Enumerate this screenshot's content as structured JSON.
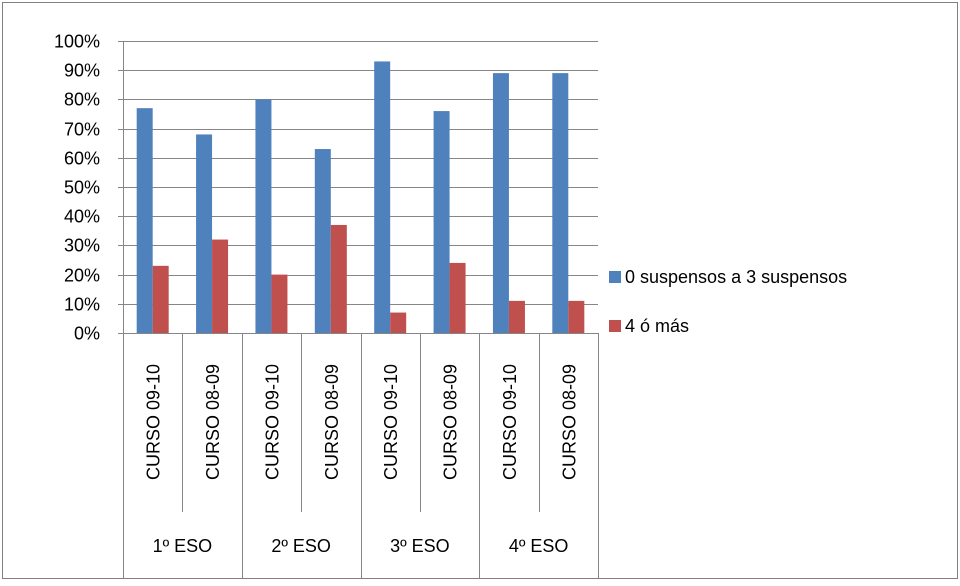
{
  "chart_data": {
    "type": "bar",
    "title": "",
    "xlabel": "",
    "ylabel": "",
    "ylim": [
      0,
      100
    ],
    "y_unit": "%",
    "y_ticks": [
      "0%",
      "10%",
      "20%",
      "30%",
      "40%",
      "50%",
      "60%",
      "70%",
      "80%",
      "90%",
      "100%"
    ],
    "grid": "horizontal",
    "legend_position": "right",
    "groups": [
      {
        "label": "1º ESO",
        "categories": [
          "CURSO 09-10",
          "CURSO 08-09"
        ]
      },
      {
        "label": "2º ESO",
        "categories": [
          "CURSO 09-10",
          "CURSO 08-09"
        ]
      },
      {
        "label": "3º ESO",
        "categories": [
          "CURSO 09-10",
          "CURSO 08-09"
        ]
      },
      {
        "label": "4º ESO",
        "categories": [
          "CURSO 09-10",
          "CURSO 08-09"
        ]
      }
    ],
    "categories": [
      "CURSO 09-10",
      "CURSO 08-09",
      "CURSO 09-10",
      "CURSO 08-09",
      "CURSO 09-10",
      "CURSO 08-09",
      "CURSO 09-10",
      "CURSO 08-09"
    ],
    "series": [
      {
        "name": "0 suspensos a 3 suspensos",
        "color": "#4F81BD",
        "values": [
          77,
          68,
          80,
          63,
          93,
          76,
          89,
          89
        ]
      },
      {
        "name": "4 ó más",
        "color": "#C0504D",
        "values": [
          23,
          32,
          20,
          37,
          7,
          24,
          11,
          11
        ]
      }
    ]
  }
}
